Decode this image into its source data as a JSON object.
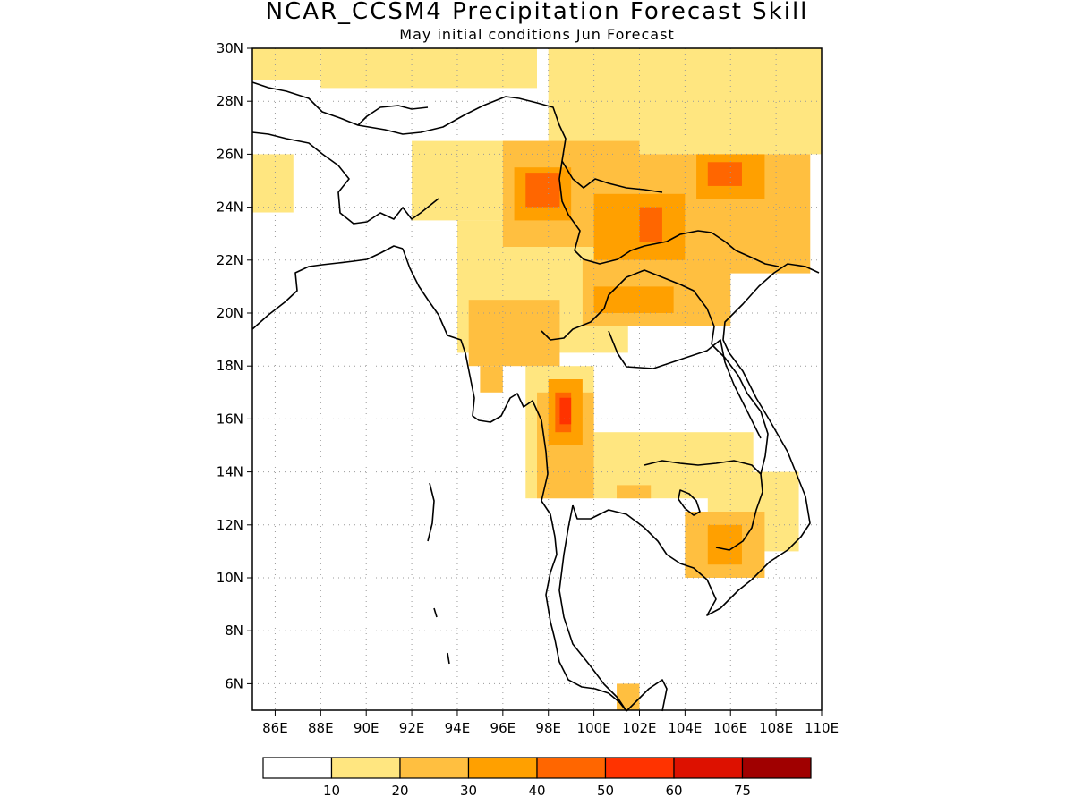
{
  "title": "NCAR_CCSM4 Precipitation Forecast Skill",
  "subtitle": "May initial conditions  Jun Forecast",
  "map": {
    "lon_range": [
      85,
      110
    ],
    "lat_range": [
      5,
      30
    ],
    "lat_ticks": [
      "30N",
      "28N",
      "26N",
      "24N",
      "22N",
      "20N",
      "18N",
      "16N",
      "14N",
      "12N",
      "10N",
      "8N",
      "6N"
    ],
    "lon_ticks": [
      "86E",
      "88E",
      "90E",
      "92E",
      "94E",
      "96E",
      "98E",
      "100E",
      "102E",
      "104E",
      "106E",
      "108E",
      "110E"
    ]
  },
  "colorbar": {
    "colors": [
      "#ffffff",
      "#ffe680",
      "#ffbf40",
      "#ffa000",
      "#ff6600",
      "#ff3300",
      "#dd1100",
      "#a00000"
    ],
    "labels": [
      "10",
      "20",
      "30",
      "40",
      "50",
      "60",
      "75"
    ]
  },
  "skill_regions": [
    {
      "level": 1,
      "lon": [
        85.0,
        88.0
      ],
      "lat": [
        28.8,
        30.0
      ]
    },
    {
      "level": 1,
      "lon": [
        88.0,
        97.5
      ],
      "lat": [
        28.5,
        30.0
      ]
    },
    {
      "level": 1,
      "lon": [
        98.0,
        110.0
      ],
      "lat": [
        26.0,
        30.0
      ]
    },
    {
      "level": 1,
      "lon": [
        92.0,
        98.0
      ],
      "lat": [
        23.5,
        26.5
      ]
    },
    {
      "level": 1,
      "lon": [
        94.0,
        101.5
      ],
      "lat": [
        18.5,
        23.5
      ]
    },
    {
      "level": 1,
      "lon": [
        85.0,
        86.8
      ],
      "lat": [
        23.8,
        26.0
      ]
    },
    {
      "level": 1,
      "lon": [
        97.0,
        100.0
      ],
      "lat": [
        13.0,
        18.0
      ]
    },
    {
      "level": 1,
      "lon": [
        100.0,
        107.0
      ],
      "lat": [
        13.0,
        15.5
      ]
    },
    {
      "level": 1,
      "lon": [
        105.0,
        109.0
      ],
      "lat": [
        11.0,
        14.0
      ]
    },
    {
      "level": 2,
      "lon": [
        96.0,
        102.0
      ],
      "lat": [
        22.5,
        26.5
      ]
    },
    {
      "level": 2,
      "lon": [
        102.0,
        109.5
      ],
      "lat": [
        21.5,
        26.0
      ]
    },
    {
      "level": 2,
      "lon": [
        99.5,
        106.0
      ],
      "lat": [
        19.5,
        22.0
      ]
    },
    {
      "level": 2,
      "lon": [
        94.5,
        98.5
      ],
      "lat": [
        18.0,
        20.5
      ]
    },
    {
      "level": 2,
      "lon": [
        95.0,
        96.0
      ],
      "lat": [
        17.0,
        18.0
      ]
    },
    {
      "level": 2,
      "lon": [
        97.5,
        100.0
      ],
      "lat": [
        13.0,
        17.0
      ]
    },
    {
      "level": 2,
      "lon": [
        101.0,
        102.5
      ],
      "lat": [
        13.0,
        13.5
      ]
    },
    {
      "level": 2,
      "lon": [
        104.0,
        107.5
      ],
      "lat": [
        10.0,
        12.5
      ]
    },
    {
      "level": 2,
      "lon": [
        101.0,
        102.0
      ],
      "lat": [
        5.0,
        6.0
      ]
    },
    {
      "level": 3,
      "lon": [
        96.5,
        99.0
      ],
      "lat": [
        23.5,
        25.5
      ]
    },
    {
      "level": 3,
      "lon": [
        100.0,
        104.0
      ],
      "lat": [
        22.0,
        24.5
      ]
    },
    {
      "level": 3,
      "lon": [
        104.5,
        107.5
      ],
      "lat": [
        24.3,
        26.0
      ]
    },
    {
      "level": 3,
      "lon": [
        100.0,
        103.5
      ],
      "lat": [
        20.0,
        21.0
      ]
    },
    {
      "level": 3,
      "lon": [
        98.0,
        99.5
      ],
      "lat": [
        15.0,
        17.5
      ]
    },
    {
      "level": 3,
      "lon": [
        105.0,
        106.5
      ],
      "lat": [
        10.5,
        12.0
      ]
    },
    {
      "level": 4,
      "lon": [
        97.0,
        98.5
      ],
      "lat": [
        24.0,
        25.3
      ]
    },
    {
      "level": 4,
      "lon": [
        102.0,
        103.0
      ],
      "lat": [
        22.7,
        24.0
      ]
    },
    {
      "level": 4,
      "lon": [
        105.0,
        106.5
      ],
      "lat": [
        24.8,
        25.7
      ]
    },
    {
      "level": 4,
      "lon": [
        98.3,
        99.0
      ],
      "lat": [
        15.5,
        17.0
      ]
    },
    {
      "level": 5,
      "lon": [
        98.5,
        99.0
      ],
      "lat": [
        15.8,
        16.8
      ]
    }
  ]
}
